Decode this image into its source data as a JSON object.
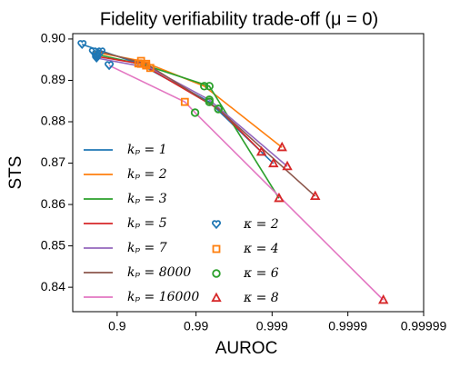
{
  "chart_data": {
    "type": "line",
    "title": "Fidelity verifiability trade-off (μ = 0)",
    "x_label": "AUROC",
    "y_label": "STS",
    "x_scale": "logit",
    "xlim": [
      0.7,
      0.99999
    ],
    "ylim": [
      0.8341,
      0.9013
    ],
    "xticks": [
      0.9,
      0.99,
      0.999,
      0.9999,
      0.99999
    ],
    "yticks": [
      0.84,
      0.85,
      0.86,
      0.87,
      0.88,
      0.89,
      {
        "value": 0.9,
        "label": "0.90"
      }
    ],
    "grid": false,
    "legend": "lower left",
    "series": [
      {
        "name": "kₚ = 1",
        "color": "#1f77b4",
        "x": [
          0.756,
          0.945,
          0.9933,
          0.99904
        ],
        "values": [
          0.8987,
          0.8941,
          0.8848,
          0.8699
        ]
      },
      {
        "name": "kₚ = 2",
        "color": "#ff7f0e",
        "x": [
          0.814,
          0.949,
          0.9922,
          0.99926
        ],
        "values": [
          0.8969,
          0.8947,
          0.8886,
          0.8738
        ]
      },
      {
        "name": "kₚ = 3",
        "color": "#2ca02c",
        "x": [
          0.828,
          0.956,
          0.9933,
          0.99919
        ],
        "values": [
          0.8963,
          0.8936,
          0.8886,
          0.8615
        ]
      },
      {
        "name": "kₚ = 5",
        "color": "#d62728",
        "x": [
          0.828,
          0.949,
          0.9949,
          0.99862
        ],
        "values": [
          0.8958,
          0.894,
          0.8831,
          0.8727
        ]
      },
      {
        "name": "kₚ = 7",
        "color": "#9467bd",
        "x": [
          0.828,
          0.961,
          0.9933,
          0.99937
        ],
        "values": [
          0.8954,
          0.893,
          0.8853,
          0.8692
        ]
      },
      {
        "name": "kₚ = 8000",
        "color": "#8c564b",
        "x": [
          0.846,
          0.956,
          0.9949,
          0.99973
        ],
        "values": [
          0.8969,
          0.894,
          0.8831,
          0.862
        ]
      },
      {
        "name": "kₚ = 16000",
        "color": "#e377c2",
        "x": [
          0.876,
          0.986,
          0.9897,
          0.999966
        ],
        "values": [
          0.8936,
          0.8848,
          0.8822,
          0.8369
        ]
      }
    ],
    "markers": [
      {
        "name": "κ = 2",
        "color": "#1f77b4",
        "shape": "heart"
      },
      {
        "name": "κ = 4",
        "color": "#ff7f0e",
        "shape": "square"
      },
      {
        "name": "κ = 6",
        "color": "#2ca02c",
        "shape": "circle"
      },
      {
        "name": "κ = 8",
        "color": "#d62728",
        "shape": "triangle"
      }
    ]
  }
}
